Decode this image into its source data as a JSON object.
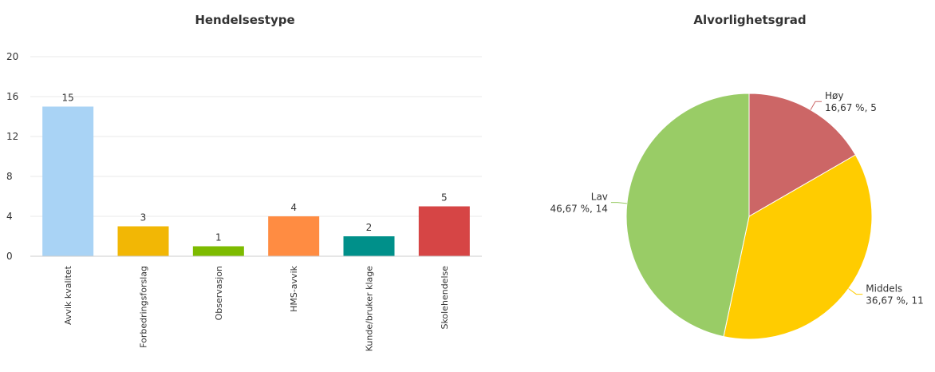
{
  "chart_data": [
    {
      "type": "bar",
      "title": "Hendelsestype",
      "categories": [
        "Avvik kvalitet",
        "Forbedringsforslag",
        "Observasjon",
        "HMS-avvik",
        "Kunde/bruker klage",
        "Skolehendelse"
      ],
      "values": [
        15,
        3,
        1,
        4,
        2,
        5
      ],
      "colors": [
        "#a9d3f5",
        "#f2b705",
        "#7dbb00",
        "#ff8c42",
        "#00908a",
        "#d64545"
      ],
      "ylim": [
        0,
        20
      ],
      "yticks": [
        "0",
        "4",
        "8",
        "12",
        "16",
        "20"
      ],
      "grid": true,
      "xlabel": "",
      "ylabel": ""
    },
    {
      "type": "pie",
      "title": "Alvorlighetsgrad",
      "slices": [
        {
          "name": "Høy",
          "value": 5,
          "pct_label": "16,67 %, 5",
          "color": "#cc6666"
        },
        {
          "name": "Middels",
          "value": 11,
          "pct_label": "36,67 %, 11",
          "color": "#ffcc00"
        },
        {
          "name": "Lav",
          "value": 14,
          "pct_label": "46,67 %, 14",
          "color": "#99cc66"
        }
      ]
    }
  ]
}
